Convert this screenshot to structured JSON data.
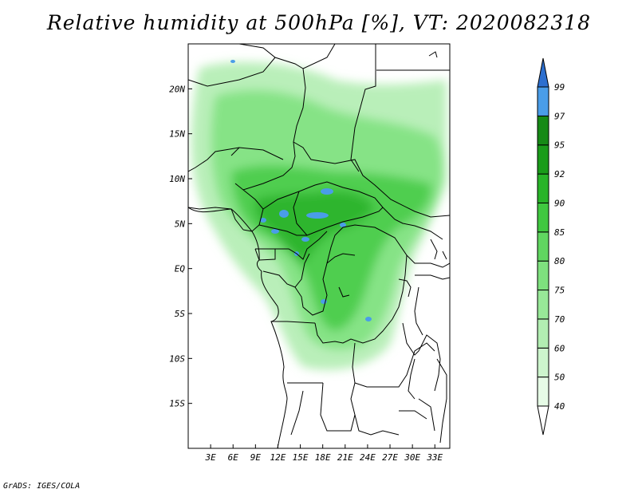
{
  "title": "Relative humidity at 500hPa [%], VT: 2020082318",
  "credit": "GrADS: IGES/COLA",
  "map": {
    "lat_labels": [
      "20N",
      "15N",
      "10N",
      "5N",
      "EQ",
      "5S",
      "10S",
      "15S"
    ],
    "lat_values": [
      20,
      15,
      10,
      5,
      0,
      -5,
      -10,
      -15
    ],
    "lon_labels": [
      "3E",
      "6E",
      "9E",
      "12E",
      "15E",
      "18E",
      "21E",
      "24E",
      "27E",
      "30E",
      "33E"
    ],
    "lon_values": [
      3,
      6,
      9,
      12,
      15,
      18,
      21,
      24,
      27,
      30,
      33
    ],
    "lon_range": [
      0,
      35
    ],
    "lat_range": [
      -20,
      25
    ]
  },
  "colorbar": {
    "levels": [
      "40",
      "50",
      "60",
      "70",
      "75",
      "80",
      "85",
      "90",
      "92",
      "95",
      "97",
      "99"
    ],
    "colors": [
      "#ffffff",
      "#e6fbe6",
      "#cdf5cd",
      "#b2eeb2",
      "#98e898",
      "#7ee07e",
      "#60d660",
      "#40c840",
      "#28b428",
      "#1a9c1a",
      "#168a16",
      "#4a9de8",
      "#2d6fcf"
    ]
  }
}
